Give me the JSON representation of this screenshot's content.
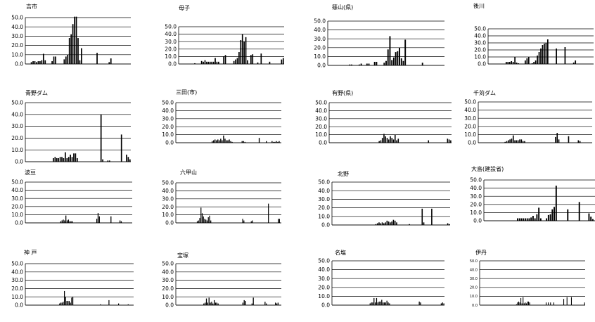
{
  "chart_data": [
    {
      "type": "bar",
      "title": "吉市",
      "ylim": [
        0,
        50
      ],
      "y_ticks": [
        "0.0",
        "10.0",
        "20.0",
        "30.0",
        "40.0",
        "50.0"
      ],
      "grid": true,
      "values": [
        0,
        0,
        0,
        2,
        3,
        3,
        2,
        3,
        3,
        4,
        11,
        4,
        0,
        0,
        0,
        3,
        8,
        8,
        0,
        0,
        0,
        0,
        5,
        8,
        10,
        28,
        32,
        43,
        51,
        51,
        28,
        4,
        17,
        0,
        0,
        0,
        0,
        0,
        0,
        0,
        0,
        12,
        0,
        0,
        0,
        0,
        0,
        0,
        2,
        6,
        0,
        0,
        0,
        0,
        0,
        0,
        0,
        0,
        0,
        0,
        0
      ]
    },
    {
      "type": "bar",
      "title": "母子",
      "ylim": [
        0,
        50
      ],
      "y_ticks": [
        "0.0",
        "10.0",
        "20.0",
        "30.0",
        "40.0",
        "50.0"
      ],
      "grid": true,
      "values": [
        0,
        0,
        0,
        0,
        0,
        0,
        0,
        0,
        0,
        1,
        0,
        0,
        0,
        4,
        3,
        5,
        3,
        3,
        3,
        3,
        3,
        8,
        3,
        3,
        0,
        0,
        10,
        12,
        0,
        0,
        0,
        0,
        4,
        6,
        8,
        16,
        32,
        40,
        30,
        36,
        5,
        0,
        12,
        13,
        0,
        0,
        2,
        0,
        14,
        0,
        0,
        0,
        0,
        3,
        0,
        0,
        0,
        0,
        0,
        0,
        6,
        8
      ]
    },
    {
      "type": "bar",
      "title": "篠山(県)",
      "ylim": [
        0,
        50
      ],
      "y_ticks": [
        "0.0",
        "10.0",
        "20.0",
        "30.0",
        "40.0",
        "50.0"
      ],
      "grid": true,
      "values": [
        0,
        0,
        0,
        0,
        0,
        0,
        0,
        0,
        0,
        0,
        0,
        1,
        1,
        0,
        0,
        0,
        1,
        2,
        0,
        0,
        2,
        2,
        0,
        0,
        4,
        4,
        0,
        0,
        0,
        3,
        5,
        18,
        33,
        6,
        9,
        15,
        16,
        20,
        8,
        5,
        29,
        0,
        0,
        0,
        0,
        0,
        0,
        0,
        0,
        3,
        0,
        0,
        0,
        0,
        0,
        0,
        0,
        0,
        0,
        0,
        0
      ]
    },
    {
      "type": "bar",
      "title": "後川",
      "ylim": [
        0,
        50
      ],
      "y_ticks": [
        "0.0",
        "10.0",
        "20.0",
        "30.0",
        "40.0",
        "50.0"
      ],
      "grid": true,
      "values": [
        0,
        0,
        0,
        0,
        0,
        0,
        0,
        0,
        0,
        0,
        3,
        3,
        3,
        4,
        3,
        10,
        2,
        1,
        0,
        0,
        0,
        5,
        8,
        10,
        0,
        1,
        3,
        5,
        12,
        17,
        22,
        27,
        29,
        30,
        35,
        0,
        0,
        0,
        0,
        22,
        0,
        0,
        0,
        0,
        24,
        0,
        0,
        0,
        0,
        2,
        5,
        0,
        0,
        0,
        0,
        0,
        0,
        0,
        0,
        0,
        0
      ]
    },
    {
      "type": "bar",
      "title": "青野ダム",
      "ylim": [
        0,
        50
      ],
      "y_ticks": [
        "0.0",
        "10.0",
        "20.0",
        "30.0",
        "40.0",
        "50.0"
      ],
      "grid": true,
      "values": [
        0,
        0,
        0,
        0,
        0,
        0,
        0,
        0,
        0,
        0,
        0,
        0,
        0,
        0,
        0,
        0,
        3,
        4,
        3,
        3,
        4,
        4,
        3,
        8,
        3,
        4,
        6,
        4,
        7,
        7,
        3,
        0,
        0,
        0,
        0,
        0,
        0,
        0,
        0,
        0,
        0,
        0,
        0,
        0,
        40,
        2,
        0,
        0,
        1,
        1,
        0,
        0,
        0,
        0,
        0,
        0,
        23,
        0,
        0,
        6,
        4,
        2
      ]
    },
    {
      "type": "bar",
      "title": "三田(市)",
      "ylim": [
        0,
        50
      ],
      "y_ticks": [
        "0.0",
        "10.0",
        "20.0",
        "30.0",
        "40.0",
        "50.0"
      ],
      "grid": true,
      "values": [
        0,
        0,
        0,
        0,
        0,
        0,
        0,
        0,
        0,
        0,
        0,
        0,
        0,
        0,
        0,
        0,
        0,
        0,
        0,
        0,
        0,
        0,
        0,
        0,
        0,
        2,
        3,
        4,
        3,
        4,
        3,
        5,
        3,
        9,
        5,
        3,
        3,
        4,
        2,
        1,
        0,
        0,
        0,
        0,
        0,
        0,
        2,
        2,
        1,
        0,
        0,
        0,
        0,
        0,
        0,
        0,
        0,
        0,
        6,
        0,
        0,
        0,
        0,
        2,
        0,
        0,
        0,
        2,
        1,
        1,
        2,
        1,
        2,
        0
      ]
    },
    {
      "type": "bar",
      "title": "有野(県)",
      "ylim": [
        0,
        50
      ],
      "y_ticks": [
        "0.0",
        "10.0",
        "20.0",
        "30.0",
        "40.0",
        "50.0"
      ],
      "grid": true,
      "values": [
        0,
        0,
        0,
        0,
        0,
        0,
        0,
        0,
        0,
        0,
        0,
        0,
        0,
        0,
        0,
        0,
        0,
        0,
        0,
        0,
        0,
        0,
        0,
        0,
        0,
        0,
        0,
        0,
        0,
        0,
        0,
        2,
        3,
        6,
        11,
        8,
        6,
        4,
        8,
        6,
        4,
        10,
        3,
        5,
        0,
        0,
        0,
        0,
        0,
        0,
        0,
        0,
        0,
        0,
        0,
        0,
        0,
        0,
        0,
        0,
        0,
        0,
        3,
        0,
        0,
        0,
        0,
        0,
        0,
        0,
        0,
        0,
        0,
        0,
        5,
        4,
        3
      ]
    },
    {
      "type": "bar",
      "title": "千苅ダム",
      "ylim": [
        0,
        50
      ],
      "y_ticks": [
        "0.0",
        "10.0",
        "20.0",
        "30.0",
        "40.0",
        "50.0"
      ],
      "grid": true,
      "values": [
        0,
        0,
        0,
        0,
        0,
        0,
        0,
        0,
        0,
        0,
        0,
        0,
        0,
        0,
        0,
        0,
        1,
        2,
        3,
        4,
        5,
        9,
        3,
        3,
        3,
        4,
        4,
        2,
        2,
        0,
        0,
        0,
        0,
        0,
        0,
        0,
        0,
        0,
        0,
        0,
        0,
        0,
        0,
        0,
        0,
        0,
        0,
        7,
        12,
        4,
        0,
        0,
        0,
        0,
        0,
        8,
        0,
        0,
        0,
        0,
        0,
        3,
        2,
        0,
        0,
        0,
        0,
        0,
        0,
        0
      ]
    },
    {
      "type": "bar",
      "title": "波豆",
      "ylim": [
        0,
        50
      ],
      "y_ticks": [
        "0.0",
        "10.0",
        "20.0",
        "30.0",
        "40.0",
        "50.0"
      ],
      "grid": true,
      "values": [
        0,
        0,
        0,
        0,
        0,
        0,
        0,
        0,
        0,
        0,
        0,
        0,
        0,
        0,
        0,
        0,
        0,
        0,
        0,
        0,
        0,
        0,
        0,
        0,
        0,
        0,
        0,
        2,
        3,
        4,
        3,
        9,
        3,
        4,
        2,
        2,
        2,
        0,
        0,
        0,
        0,
        0,
        0,
        0,
        0,
        0,
        0,
        0,
        0,
        0,
        0,
        0,
        0,
        0,
        0,
        5,
        12,
        8,
        0,
        0,
        0,
        0,
        0,
        0,
        0,
        0,
        8,
        0,
        0,
        0,
        0,
        0,
        0,
        3,
        2,
        0,
        0,
        0,
        0,
        0,
        0,
        0,
        0
      ]
    },
    {
      "type": "bar",
      "title": "六甲山",
      "ylim": [
        0,
        50
      ],
      "y_ticks": [
        "0.0",
        "10.0",
        "20.0",
        "30.0",
        "40.0",
        "50.0"
      ],
      "grid": true,
      "values": [
        0,
        0,
        0,
        0,
        0,
        0,
        0,
        0,
        0,
        0,
        0,
        0,
        0,
        0,
        0,
        0,
        0,
        2,
        3,
        6,
        19,
        12,
        8,
        5,
        4,
        3,
        7,
        9,
        3,
        0,
        0,
        0,
        0,
        0,
        0,
        0,
        0,
        0,
        0,
        0,
        0,
        0,
        0,
        0,
        0,
        0,
        0,
        0,
        0,
        0,
        0,
        0,
        0,
        0,
        5,
        3,
        0,
        0,
        0,
        0,
        0,
        2,
        3,
        0,
        0,
        0,
        0,
        0,
        0,
        0,
        0,
        0,
        0,
        0,
        0,
        24,
        0,
        0,
        0,
        0,
        0,
        0,
        0,
        5,
        5,
        0
      ]
    },
    {
      "type": "bar",
      "title": "北野",
      "ylim": [
        0,
        50
      ],
      "y_ticks": [
        "0.0",
        "10.0",
        "20.0",
        "30.0",
        "40.0",
        "50.0"
      ],
      "grid": true,
      "values": [
        0,
        0,
        0,
        0,
        0,
        0,
        0,
        0,
        0,
        0,
        0,
        0,
        0,
        0,
        0,
        0,
        0,
        0,
        0,
        0,
        0,
        0,
        0,
        0,
        0,
        0,
        0,
        1,
        2,
        3,
        2,
        3,
        2,
        3,
        5,
        4,
        3,
        4,
        6,
        5,
        3,
        0,
        0,
        0,
        0,
        0,
        0,
        0,
        1,
        0,
        0,
        0,
        0,
        0,
        0,
        0,
        19,
        3,
        0,
        0,
        0,
        0,
        19,
        0,
        0,
        0,
        0,
        0,
        0,
        0,
        0,
        0,
        2,
        1
      ]
    },
    {
      "type": "bar",
      "title": "大島(建設省)",
      "ylim": [
        0,
        50
      ],
      "y_ticks": [
        "0.0",
        "10.0",
        "20.0",
        "30.0",
        "40.0",
        "50.0"
      ],
      "grid": true,
      "values": [
        0,
        0,
        0,
        0,
        0,
        0,
        0,
        0,
        0,
        0,
        0,
        0,
        0,
        0,
        0,
        0,
        0,
        3,
        3,
        3,
        3,
        3,
        3,
        3,
        4,
        6,
        3,
        8,
        16,
        3,
        0,
        0,
        3,
        7,
        8,
        14,
        17,
        43,
        0,
        0,
        0,
        0,
        0,
        14,
        0,
        0,
        0,
        0,
        0,
        23,
        0,
        0,
        0,
        0,
        9,
        5,
        2,
        0,
        0,
        0,
        0,
        0
      ]
    },
    {
      "type": "bar",
      "title": "神 戸",
      "ylim": [
        0,
        50
      ],
      "y_ticks": [
        "0.0",
        "10.0",
        "20.0",
        "30.0",
        "40.0",
        "50.0"
      ],
      "grid": true,
      "values": [
        0,
        0,
        0,
        0,
        0,
        0,
        0,
        0,
        0,
        0,
        0,
        0,
        0,
        0,
        0,
        0,
        0,
        0,
        0,
        0,
        0,
        0,
        0,
        0,
        0,
        0,
        0,
        0,
        2,
        3,
        3,
        4,
        17,
        10,
        5,
        5,
        5,
        3,
        9,
        10,
        0,
        0,
        0,
        0,
        0,
        0,
        0,
        0,
        0,
        0,
        0,
        0,
        0,
        0,
        0,
        0,
        0,
        0,
        0,
        0,
        0,
        0,
        1,
        0,
        0,
        0,
        0,
        0,
        0,
        6,
        0,
        0,
        0,
        0,
        0,
        0,
        0,
        2,
        0,
        0,
        0,
        0,
        0,
        0,
        0,
        1,
        0,
        0,
        0,
        0
      ]
    },
    {
      "type": "bar",
      "title": "宝塚",
      "ylim": [
        0,
        50
      ],
      "y_ticks": [
        "0.0",
        "10.0",
        "20.0",
        "30.0",
        "40.0",
        "50.0"
      ],
      "grid": true,
      "values": [
        0,
        0,
        0,
        0,
        0,
        0,
        0,
        0,
        0,
        0,
        0,
        0,
        0,
        0,
        0,
        0,
        0,
        0,
        0,
        0,
        0,
        2,
        3,
        8,
        3,
        9,
        3,
        4,
        2,
        6,
        3,
        3,
        2,
        0,
        0,
        0,
        0,
        0,
        0,
        0,
        0,
        0,
        0,
        0,
        0,
        0,
        0,
        0,
        0,
        0,
        0,
        3,
        6,
        5,
        0,
        0,
        0,
        0,
        2,
        9,
        0,
        0,
        0,
        0,
        0,
        0,
        0,
        0,
        4,
        2,
        0,
        0,
        0,
        0,
        0,
        0,
        3,
        2,
        3,
        0,
        0
      ]
    },
    {
      "type": "bar",
      "title": "名塩",
      "ylim": [
        0,
        50
      ],
      "y_ticks": [
        "0.0",
        "10.0",
        "20.0",
        "30.0",
        "40.0",
        "50.0"
      ],
      "grid": true,
      "values": [
        0,
        0,
        0,
        0,
        0,
        0,
        0,
        0,
        0,
        0,
        0,
        0,
        0,
        0,
        0,
        0,
        0,
        0,
        0,
        0,
        0,
        0,
        0,
        0,
        0,
        0,
        0,
        0,
        0,
        2,
        3,
        3,
        8,
        3,
        8,
        3,
        4,
        4,
        6,
        3,
        3,
        3,
        5,
        3,
        2,
        0,
        0,
        0,
        0,
        0,
        0,
        0,
        0,
        0,
        0,
        0,
        0,
        0,
        0,
        0,
        0,
        0,
        0,
        0,
        0,
        0,
        0,
        4,
        3,
        0,
        0,
        0,
        0,
        0,
        0,
        0,
        0,
        0,
        0,
        0,
        0,
        0,
        0,
        0,
        2,
        3,
        2
      ]
    },
    {
      "type": "bar",
      "title": "伊丹",
      "ylim": [
        0,
        50
      ],
      "y_ticks": [
        "0.0",
        "10.0",
        "20.0",
        "30.0",
        "40.0",
        "50.0"
      ],
      "grid": true,
      "values": [
        0,
        0,
        0,
        0,
        0,
        0,
        0,
        0,
        0,
        0,
        0,
        0,
        0,
        0,
        0,
        0,
        0,
        0,
        0,
        0,
        0,
        0,
        0,
        0,
        0,
        0,
        0,
        0,
        0,
        0,
        0,
        0,
        0,
        1,
        3,
        4,
        3,
        8,
        2,
        9,
        2,
        3,
        2,
        4,
        4,
        3,
        0,
        0,
        0,
        0,
        0,
        0,
        0,
        0,
        0,
        0,
        0,
        0,
        0,
        0,
        3,
        0,
        3,
        0,
        3,
        0,
        0,
        3,
        0,
        0,
        0,
        0,
        0,
        0,
        0,
        0,
        7,
        0,
        0,
        9,
        0,
        0,
        0,
        9,
        0,
        0,
        0,
        0,
        0,
        0,
        0,
        0,
        0,
        0,
        0,
        3
      ]
    }
  ]
}
